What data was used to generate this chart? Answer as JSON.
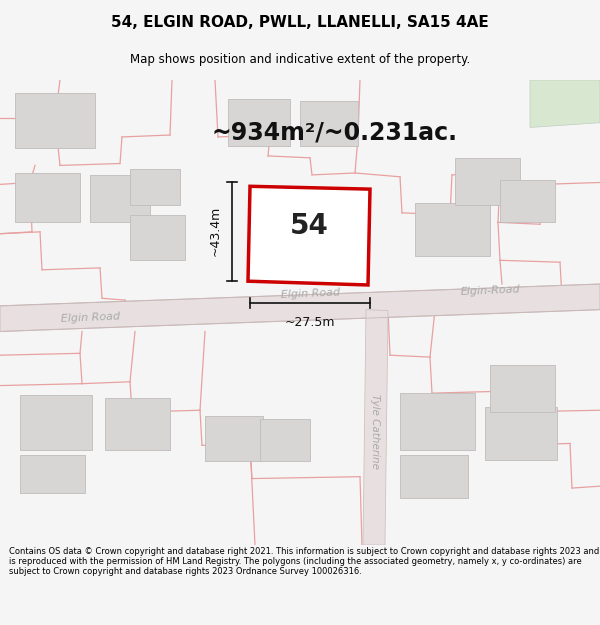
{
  "title": "54, ELGIN ROAD, PWLL, LLANELLI, SA15 4AE",
  "subtitle": "Map shows position and indicative extent of the property.",
  "area_label": "~934m²/~0.231ac.",
  "plot_number": "54",
  "dim_height": "~43.4m",
  "dim_width": "~27.5m",
  "road_label_left": "Elgin Road",
  "road_label_right": "Elgin-Road",
  "road_label_center": "Elgin Road",
  "road_label_vert": "Tyle Catherine",
  "footer_text": "Contains OS data © Crown copyright and database right 2021. This information is subject to Crown copyright and database rights 2023 and is reproduced with the permission of HM Land Registry. The polygons (including the associated geometry, namely x, y co-ordinates) are subject to Crown copyright and database rights 2023 Ordnance Survey 100026316.",
  "bg_color": "#f5f5f5",
  "map_bg": "#f0eeee",
  "road_fill": "#e8e2e2",
  "road_edge": "#d0c0c0",
  "building_fill": "#d8d5d5",
  "building_edge": "#c0bcbc",
  "plot_fill": "#ffffff",
  "plot_border": "#cc0000",
  "prop_line_color": "#e8a0a0",
  "dim_color": "#111111",
  "road_text_color": "#aaaaaa",
  "green_fill": "#d8e8d0"
}
